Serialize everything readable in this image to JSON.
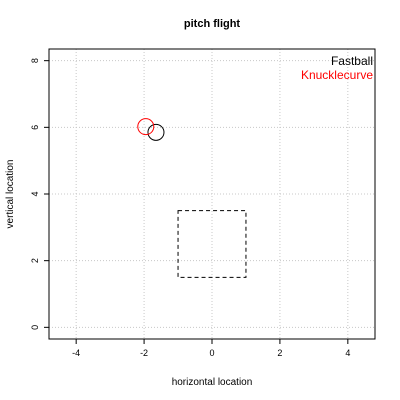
{
  "chart_data": {
    "type": "scatter",
    "title": "pitch flight",
    "xlabel": "horizontal location",
    "ylabel": "vertical location",
    "xlim": [
      -4.8,
      4.8
    ],
    "ylim": [
      -0.35,
      8.35
    ],
    "xticks": [
      -4,
      -2,
      0,
      2,
      4
    ],
    "yticks": [
      0,
      2,
      4,
      6,
      8
    ],
    "grid": true,
    "legend_position": "top-right",
    "series": [
      {
        "name": "Fastball",
        "color": "#000000",
        "points": [
          {
            "x": -1.65,
            "y": 5.85
          }
        ]
      },
      {
        "name": "Knucklecurve",
        "color": "#ff0000",
        "points": [
          {
            "x": -1.95,
            "y": 6.02
          }
        ]
      }
    ],
    "strike_zone": {
      "x": [
        -1.0,
        1.0
      ],
      "y": [
        1.5,
        3.5
      ],
      "style": "dashed"
    }
  }
}
